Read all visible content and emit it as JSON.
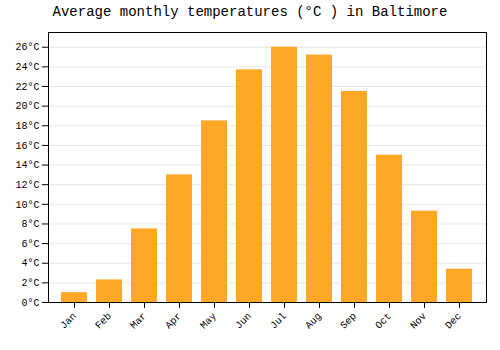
{
  "chart_data": {
    "type": "bar",
    "title": "Average monthly temperatures (°C ) in Baltimore",
    "categories": [
      "Jan",
      "Feb",
      "Mar",
      "Apr",
      "May",
      "Jun",
      "Jul",
      "Aug",
      "Sep",
      "Oct",
      "Nov",
      "Dec"
    ],
    "values": [
      1,
      2.3,
      7.5,
      13,
      18.5,
      23.7,
      26,
      25.2,
      21.5,
      15,
      9.3,
      3.4
    ],
    "color": "#FFA726",
    "ylim": [
      0,
      27.5
    ],
    "yticks": [
      {
        "value": 0,
        "label": "0°C"
      },
      {
        "value": 2,
        "label": "2°C"
      },
      {
        "value": 4,
        "label": "4°C"
      },
      {
        "value": 6,
        "label": "6°C"
      },
      {
        "value": 8,
        "label": "8°C"
      },
      {
        "value": 10,
        "label": "10°C"
      },
      {
        "value": 12,
        "label": "12°C"
      },
      {
        "value": 14,
        "label": "14°C"
      },
      {
        "value": 16,
        "label": "16°C"
      },
      {
        "value": 18,
        "label": "18°C"
      },
      {
        "value": 20,
        "label": "20°C"
      },
      {
        "value": 22,
        "label": "22°C"
      },
      {
        "value": 24,
        "label": "24°C"
      },
      {
        "value": 26,
        "label": "26°C"
      }
    ],
    "grid": true
  }
}
